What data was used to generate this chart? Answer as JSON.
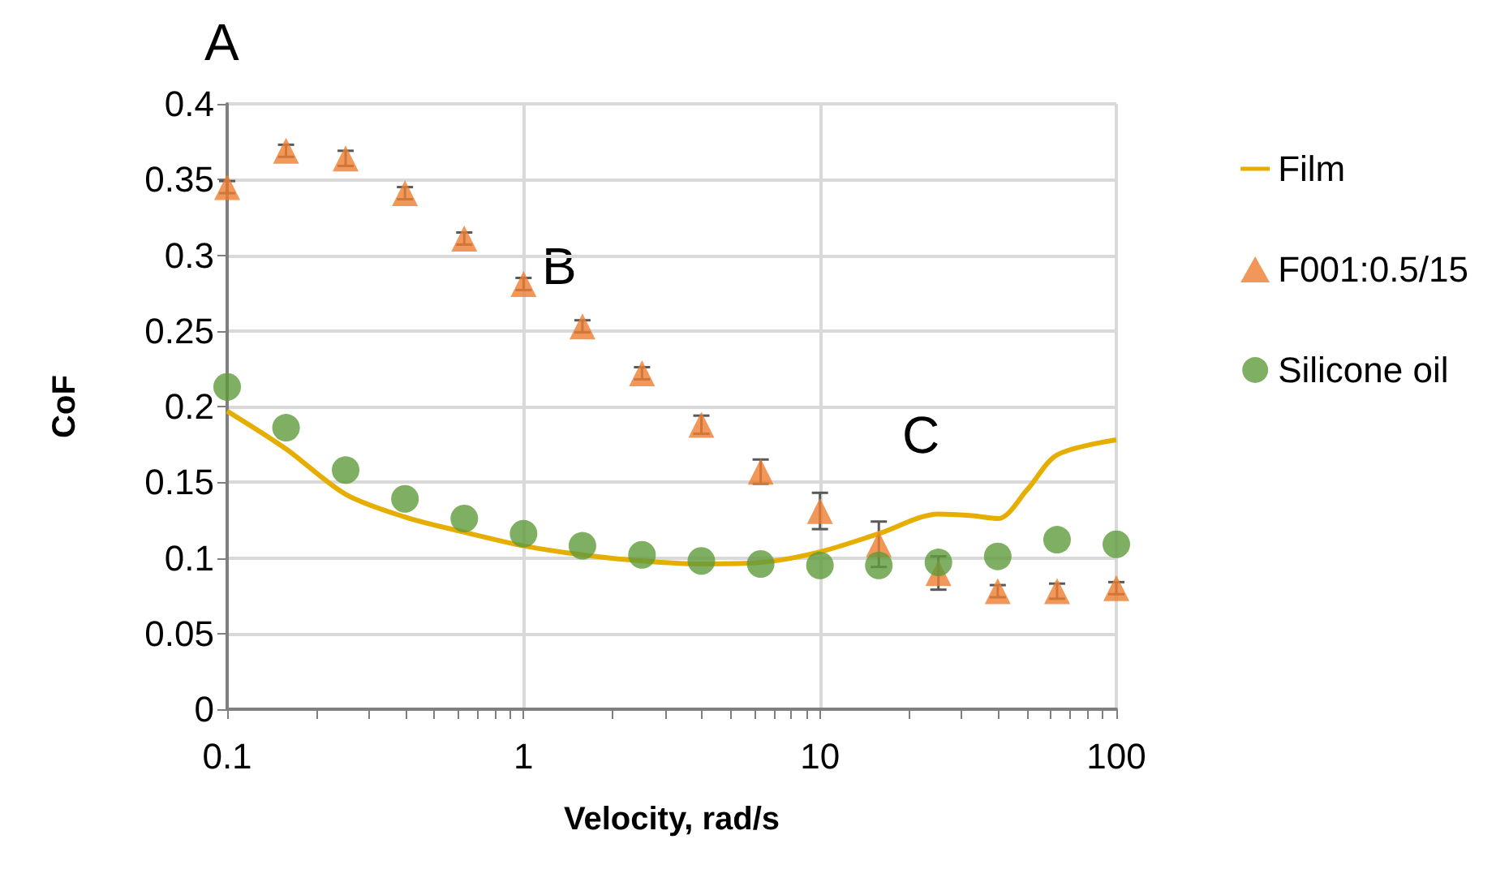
{
  "chart_data": {
    "type": "scatter",
    "xlabel": "Velocity, rad/s",
    "ylabel": "CoF",
    "log": "x",
    "xlim": [
      0.1,
      100
    ],
    "xticks": [
      0.1,
      1,
      10,
      100
    ],
    "ylim": [
      0,
      0.4
    ],
    "yticks": [
      0,
      0.05,
      0.1,
      0.15,
      0.2,
      0.25,
      0.3,
      0.35,
      0.4
    ],
    "grid": true,
    "legend": "right",
    "annotations": [
      "A",
      "B",
      "C"
    ],
    "series": [
      {
        "name": "Film",
        "type": "line",
        "color": "#e6ae00",
        "marker": "none",
        "line_style": "solid",
        "x": [
          0.1,
          0.158,
          0.251,
          0.398,
          0.631,
          1,
          1.58,
          2.51,
          3.98,
          6.31,
          10,
          15.8,
          25.1,
          32,
          40,
          50,
          63.1,
          100
        ],
        "values": [
          0.197,
          0.172,
          0.142,
          0.127,
          0.117,
          0.108,
          0.102,
          0.098,
          0.096,
          0.097,
          0.104,
          0.116,
          0.129,
          0.128,
          0.126,
          0.145,
          0.168,
          0.178
        ]
      },
      {
        "name": "F001:0.5/15",
        "color": "#ed7d31",
        "marker": "triangle",
        "x": [
          0.1,
          0.158,
          0.251,
          0.398,
          0.631,
          1,
          1.58,
          2.51,
          3.98,
          6.31,
          10,
          15.8,
          25.1,
          39.8,
          63.1,
          100
        ],
        "values": [
          0.345,
          0.369,
          0.364,
          0.341,
          0.311,
          0.281,
          0.253,
          0.222,
          0.188,
          0.157,
          0.131,
          0.109,
          0.09,
          0.078,
          0.078,
          0.08
        ],
        "errors": [
          0.004,
          0.004,
          0.005,
          0.004,
          0.004,
          0.004,
          0.004,
          0.004,
          0.006,
          0.008,
          0.012,
          0.015,
          0.011,
          0.004,
          0.005,
          0.004
        ]
      },
      {
        "name": "Silicone oil",
        "color": "#5f9b3c",
        "marker": "circle",
        "x": [
          0.1,
          0.158,
          0.251,
          0.398,
          0.631,
          1,
          1.58,
          2.51,
          3.98,
          6.31,
          10,
          15.8,
          25.1,
          39.8,
          63.1,
          100
        ],
        "values": [
          0.213,
          0.186,
          0.158,
          0.139,
          0.126,
          0.116,
          0.108,
          0.102,
          0.098,
          0.096,
          0.095,
          0.095,
          0.097,
          0.101,
          0.112,
          0.109
        ]
      }
    ]
  }
}
